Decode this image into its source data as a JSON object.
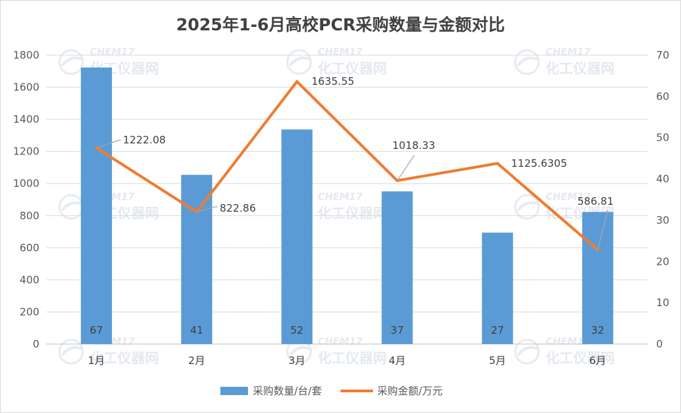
{
  "chart_data": {
    "type": "bar",
    "title": "2025年1-6月高校PCR采购数量与金额对比",
    "categories": [
      "1月",
      "2月",
      "3月",
      "4月",
      "5月",
      "6月"
    ],
    "series": [
      {
        "name": "采购数量/台/套",
        "type": "bar",
        "axis": "right",
        "color": "#5B9BD5",
        "values": [
          67,
          41,
          52,
          37,
          27,
          32
        ]
      },
      {
        "name": "采购金额/万元",
        "type": "line",
        "axis": "left",
        "color": "#ED7D31",
        "values": [
          1222.08,
          822.86,
          1635.55,
          1018.33,
          1125.6305,
          586.81
        ]
      }
    ],
    "y_left": {
      "min": 0,
      "max": 1800,
      "ticks": [
        0,
        200,
        400,
        600,
        800,
        1000,
        1200,
        1400,
        1600,
        1800
      ]
    },
    "y_right": {
      "min": 0,
      "max": 70,
      "ticks": [
        0,
        10,
        20,
        30,
        40,
        50,
        60,
        70
      ]
    },
    "grid": true,
    "legend": "bottom"
  },
  "watermark": {
    "brand": "CHEM17",
    "name": "化工仪器网"
  }
}
